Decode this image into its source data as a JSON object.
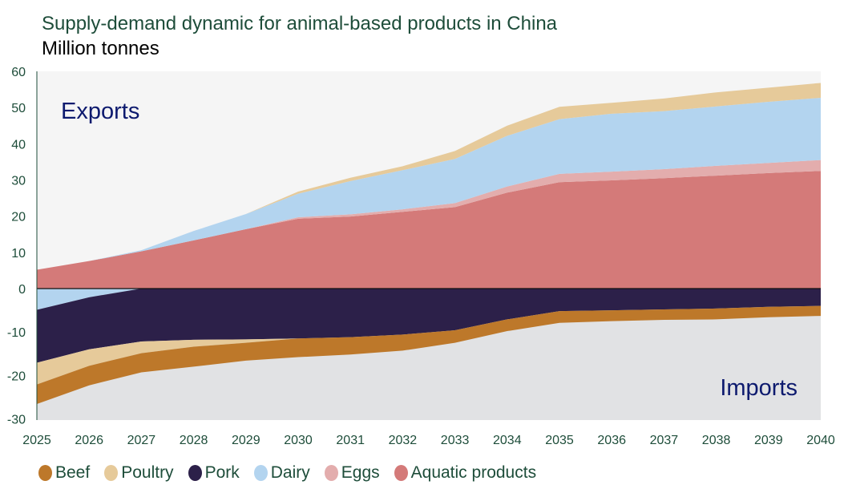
{
  "chart_data": {
    "type": "area",
    "stacked": true,
    "title": "Supply-demand dynamic for animal-based products in China",
    "subtitle": "Million tonnes",
    "xlabel": "",
    "ylabel": "",
    "annotations": [
      "Exports",
      "Imports"
    ],
    "ylim": [
      -30,
      60
    ],
    "yticks": [
      "60",
      "50",
      "40",
      "30",
      "20",
      "10",
      "0",
      "-10",
      "-20",
      "-30"
    ],
    "ytick_values": [
      60,
      50,
      40,
      30,
      20,
      10,
      0,
      -10,
      -20,
      -30
    ],
    "x": [
      "2025",
      "2026",
      "2027",
      "2028",
      "2029",
      "2030",
      "2031",
      "2032",
      "2033",
      "2034",
      "2035",
      "2036",
      "2037",
      "2038",
      "2039",
      "2040"
    ],
    "legend_position": "bottom",
    "series": [
      {
        "name": "Beef",
        "color": "#bd782a",
        "values": [
          -4.5,
          -4.5,
          -4.4,
          -4.6,
          -4.1,
          -4.3,
          -4.0,
          -3.7,
          -2.9,
          -2.7,
          -2.7,
          -2.5,
          -2.4,
          -2.5,
          -2.4,
          -2.3
        ]
      },
      {
        "name": "Poultry",
        "color": "#e6ca9a",
        "values": [
          -5.0,
          -3.8,
          -2.7,
          -1.6,
          -0.8,
          0.6,
          0.9,
          1.1,
          2.2,
          2.8,
          3.4,
          3.0,
          3.5,
          3.9,
          3.9,
          4.1
        ]
      },
      {
        "name": "Pork",
        "color": "#2c2049",
        "values": [
          -12.2,
          -12.0,
          -12.2,
          -11.8,
          -11.7,
          -11.5,
          -11.2,
          -10.6,
          -9.6,
          -7.1,
          -5.2,
          -5.0,
          -4.8,
          -4.6,
          -4.2,
          -4.0
        ]
      },
      {
        "name": "Dairy",
        "color": "#b3d4ef",
        "values": [
          -4.9,
          -2.0,
          0.3,
          2.6,
          4.2,
          6.5,
          9.2,
          10.8,
          12.2,
          14.0,
          15.1,
          16.0,
          16.0,
          16.4,
          16.9,
          17.2
        ]
      },
      {
        "name": "Eggs",
        "color": "#e3adad",
        "values": [
          0,
          0,
          0,
          0,
          0,
          0.4,
          0.6,
          0.7,
          1.1,
          1.7,
          2.3,
          2.4,
          2.5,
          2.7,
          2.8,
          3.0
        ]
      },
      {
        "name": "Aquatic products",
        "color": "#d47a79",
        "values": [
          5.2,
          7.6,
          10.3,
          13.3,
          16.4,
          19.3,
          19.9,
          21.2,
          22.5,
          26.5,
          29.4,
          29.9,
          30.5,
          31.2,
          31.9,
          32.5
        ]
      }
    ],
    "stack_order": [
      "Aquatic products",
      "Eggs",
      "Dairy",
      "Pork",
      "Poultry",
      "Beef"
    ],
    "grid": false
  }
}
